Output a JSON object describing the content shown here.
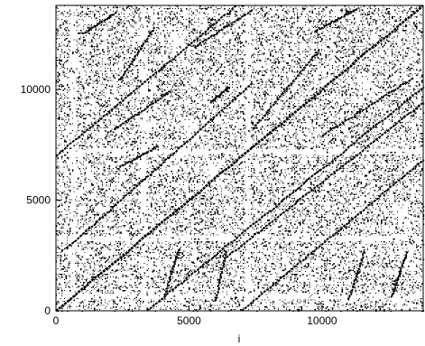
{
  "chart_data": {
    "type": "scatter",
    "style": "recurrence plot (dense black dots on white)",
    "title": "",
    "xlabel": "i",
    "ylabel": "",
    "xlim": [
      0,
      13800
    ],
    "ylim": [
      0,
      13800
    ],
    "x_ticks": [
      {
        "value": 0,
        "label": "0"
      },
      {
        "value": 5000,
        "label": "5000"
      },
      {
        "value": 10000,
        "label": "10000"
      }
    ],
    "y_ticks": [
      {
        "value": 0,
        "label": "0"
      },
      {
        "value": 5000,
        "label": "5000"
      },
      {
        "value": 10000,
        "label": "10000"
      }
    ],
    "grid": false,
    "legend": "none",
    "dot_color": "#000000",
    "background_color": "#ffffff",
    "noise_density": 0.4,
    "sparse_bands": [
      650,
      3300,
      7200
    ],
    "lines": [
      {
        "x": [
          0,
          13800
        ],
        "y": [
          0,
          13800
        ]
      },
      {
        "x": [
          7000,
          13800
        ],
        "y": [
          0,
          6800
        ]
      },
      {
        "x": [
          0,
          6800
        ],
        "y": [
          7000,
          13800
        ]
      },
      {
        "x": [
          400,
          7400
        ],
        "y": [
          2800,
          10300
        ]
      },
      {
        "x": [
          3400,
          13800
        ],
        "y": [
          0,
          10100
        ]
      },
      {
        "x": [
          6400,
          13800
        ],
        "y": [
          2400,
          9400
        ]
      },
      {
        "x": [
          2400,
          3700
        ],
        "y": [
          10400,
          12800
        ]
      },
      {
        "x": [
          5200,
          7400
        ],
        "y": [
          11900,
          13600
        ]
      },
      {
        "x": [
          2200,
          4300
        ],
        "y": [
          8200,
          9900
        ]
      },
      {
        "x": [
          7400,
          9900
        ],
        "y": [
          8200,
          11800
        ]
      },
      {
        "x": [
          10000,
          13400
        ],
        "y": [
          7900,
          10500
        ]
      },
      {
        "x": [
          9700,
          11400
        ],
        "y": [
          12600,
          13700
        ]
      },
      {
        "x": [
          4100,
          4600
        ],
        "y": [
          700,
          2700
        ]
      },
      {
        "x": [
          6000,
          6400
        ],
        "y": [
          400,
          2700
        ]
      },
      {
        "x": [
          2400,
          3800
        ],
        "y": [
          6500,
          7400
        ]
      },
      {
        "x": [
          5800,
          6500
        ],
        "y": [
          9400,
          10100
        ]
      },
      {
        "x": [
          1000,
          2300
        ],
        "y": [
          12500,
          13500
        ]
      },
      {
        "x": [
          11000,
          11600
        ],
        "y": [
          500,
          2700
        ]
      },
      {
        "x": [
          12600,
          13200
        ],
        "y": [
          600,
          2700
        ]
      }
    ]
  }
}
